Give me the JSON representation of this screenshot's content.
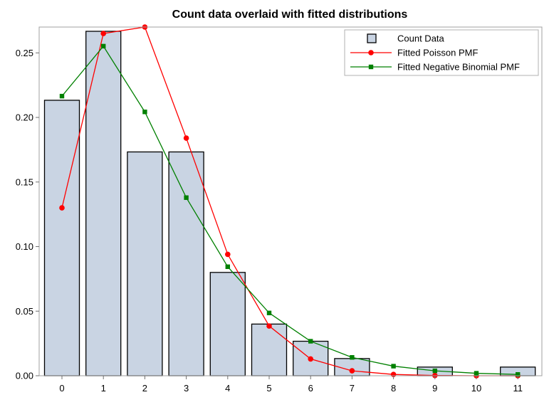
{
  "chart_data": {
    "type": "bar",
    "title": "Count data overlaid with fitted distributions",
    "xlabel": "",
    "ylabel": "",
    "categories": [
      "0",
      "1",
      "2",
      "3",
      "4",
      "5",
      "6",
      "7",
      "8",
      "9",
      "10",
      "11"
    ],
    "ylim": [
      0,
      0.27
    ],
    "yticks": [
      "0.00",
      "0.05",
      "0.10",
      "0.15",
      "0.20",
      "0.25"
    ],
    "grid": false,
    "legend_position": "top-right",
    "series": [
      {
        "name": "Count Data",
        "kind": "bar",
        "color": "#c9d4e3",
        "edge_color": "#000000",
        "values": [
          0.2133,
          0.2667,
          0.1733,
          0.1733,
          0.08,
          0.04,
          0.0267,
          0.0133,
          0.0,
          0.0067,
          0.0,
          0.0067
        ]
      },
      {
        "name": "Fitted Poisson PMF",
        "kind": "line",
        "marker": "circle",
        "color": "#ff0000",
        "values": [
          0.13,
          0.265,
          0.27,
          0.184,
          0.094,
          0.0385,
          0.013,
          0.0038,
          0.001,
          0.0002,
          0.0,
          0.0
        ]
      },
      {
        "name": "Fitted Negative Binomial PMF",
        "kind": "line",
        "marker": "square",
        "color": "#008000",
        "values": [
          0.2165,
          0.2552,
          0.2043,
          0.1379,
          0.0844,
          0.0486,
          0.0267,
          0.0142,
          0.0074,
          0.0038,
          0.0019,
          0.001
        ]
      }
    ]
  }
}
